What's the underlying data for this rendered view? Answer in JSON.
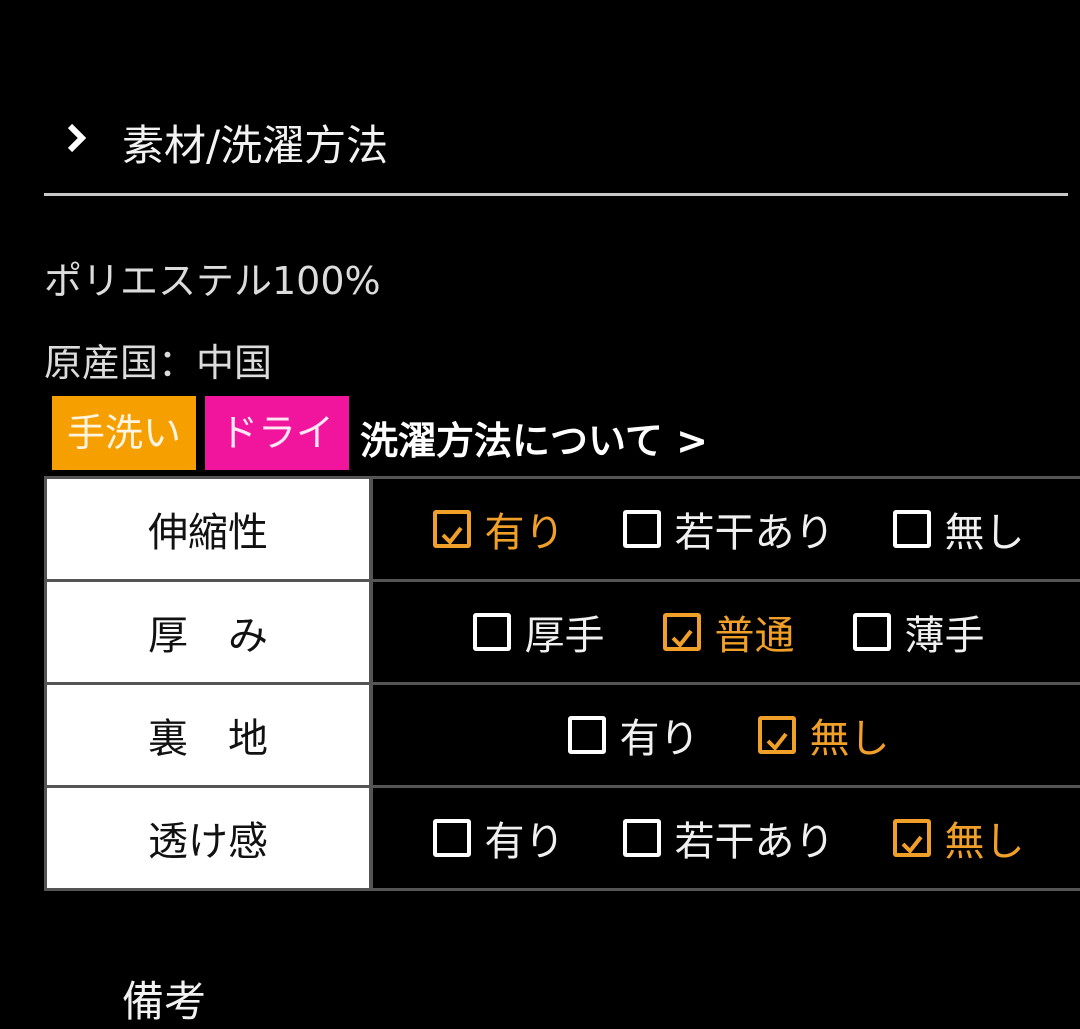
{
  "section": {
    "title": "素材/洗濯方法"
  },
  "material": "ポリエステル100%",
  "origin": "原産国：中国",
  "badges": [
    "手洗い",
    "ドライ"
  ],
  "link": "洗濯方法について >",
  "table": {
    "rows": [
      {
        "label": "伸縮性",
        "options": [
          {
            "text": "有り",
            "checked": true
          },
          {
            "text": "若干あり",
            "checked": false
          },
          {
            "text": "無し",
            "checked": false
          }
        ]
      },
      {
        "label": "厚　み",
        "options": [
          {
            "text": "厚手",
            "checked": false
          },
          {
            "text": "普通",
            "checked": true
          },
          {
            "text": "薄手",
            "checked": false
          }
        ]
      },
      {
        "label": "裏　地",
        "options": [
          {
            "text": "有り",
            "checked": false
          },
          {
            "text": "無し",
            "checked": true
          }
        ]
      },
      {
        "label": "透け感",
        "options": [
          {
            "text": "有り",
            "checked": false
          },
          {
            "text": "若干あり",
            "checked": false
          },
          {
            "text": "無し",
            "checked": true
          }
        ]
      }
    ]
  },
  "next_section": {
    "title": "備考"
  }
}
